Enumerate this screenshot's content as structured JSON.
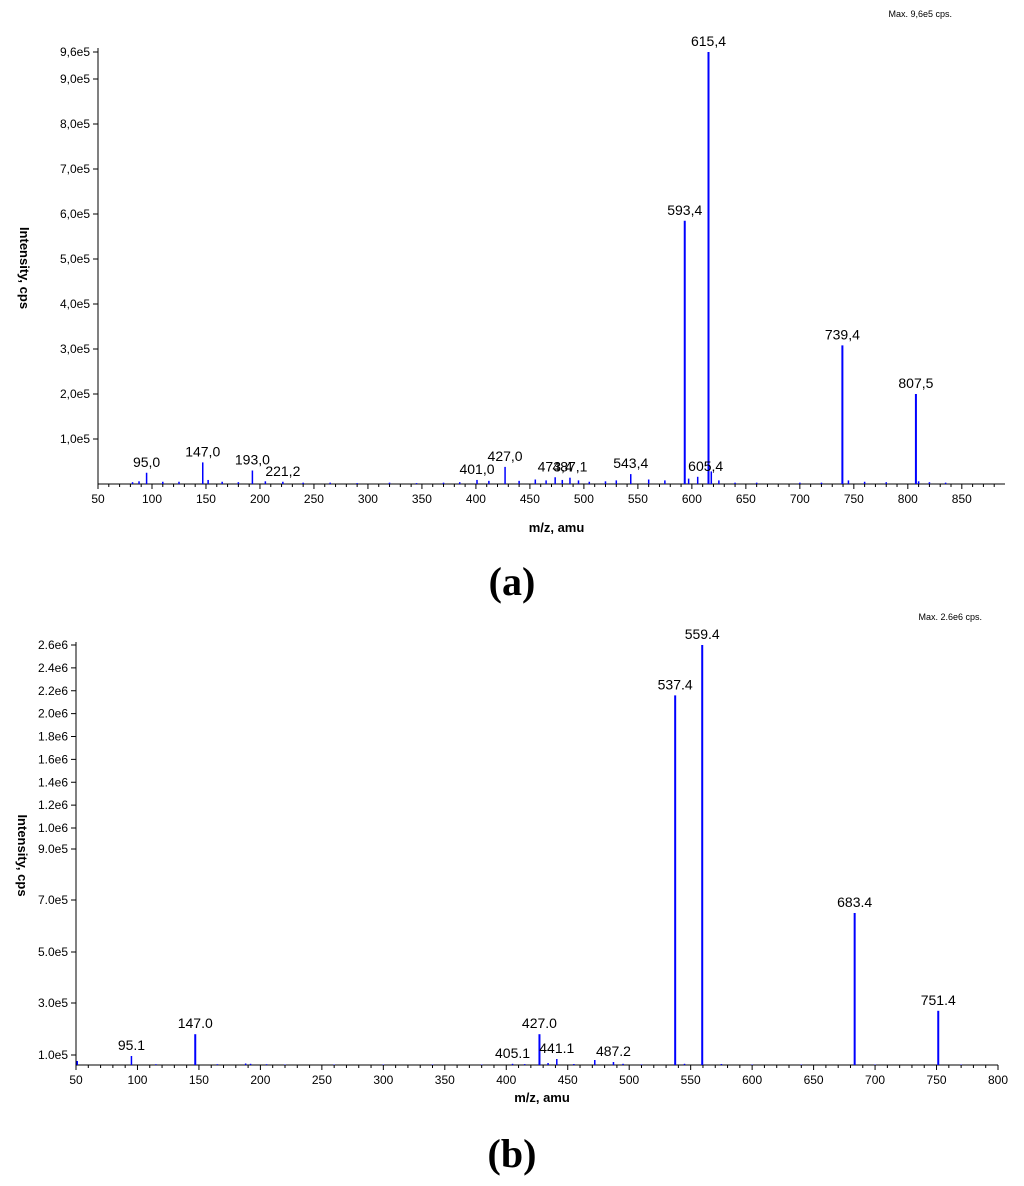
{
  "chart_data": [
    {
      "type": "line",
      "panel_label": "(a)",
      "max_note": "Max. 9,6e5 cps.",
      "xlabel": "m/z, amu",
      "ylabel": "Intensity, cps",
      "xlim": [
        50,
        890
      ],
      "ylim": [
        0,
        960000
      ],
      "xticks": [
        50,
        100,
        150,
        200,
        250,
        300,
        350,
        400,
        450,
        500,
        550,
        600,
        650,
        700,
        750,
        800,
        850
      ],
      "yticks": [
        {
          "value": 100000,
          "label": "1,0e5"
        },
        {
          "value": 200000,
          "label": "2,0e5"
        },
        {
          "value": 300000,
          "label": "3,0e5"
        },
        {
          "value": 400000,
          "label": "4,0e5"
        },
        {
          "value": 500000,
          "label": "5,0e5"
        },
        {
          "value": 600000,
          "label": "6,0e5"
        },
        {
          "value": 700000,
          "label": "7,0e5"
        },
        {
          "value": 800000,
          "label": "8,0e5"
        },
        {
          "value": 900000,
          "label": "9,0e5"
        },
        {
          "value": 960000,
          "label": "9,6e5"
        }
      ],
      "series": [
        {
          "color": "#0000ff",
          "x": [
            82,
            88,
            95.0,
            110,
            125,
            147.0,
            152,
            165,
            180,
            193.0,
            205,
            221.2,
            240,
            265,
            290,
            320,
            345,
            370,
            385,
            401.0,
            412,
            427.0,
            440,
            455,
            465,
            473.4,
            480,
            487.1,
            495,
            505,
            520,
            530,
            543.4,
            560,
            575,
            593.4,
            597,
            605.4,
            615.4,
            618,
            625,
            640,
            660,
            700,
            720,
            739.4,
            745,
            760,
            780,
            807.5,
            810,
            820,
            835
          ],
          "y": [
            4000,
            6000,
            25000,
            5000,
            5000,
            48000,
            9000,
            5000,
            4000,
            30000,
            6000,
            5000,
            3000,
            3000,
            2000,
            3000,
            2000,
            3000,
            4000,
            9000,
            7000,
            38000,
            7000,
            10000,
            8000,
            15000,
            9000,
            14000,
            8000,
            5000,
            6000,
            8000,
            22000,
            10000,
            8000,
            585000,
            12000,
            16000,
            960000,
            28000,
            8000,
            3000,
            3000,
            3000,
            3000,
            308000,
            8000,
            5000,
            4000,
            200000,
            6000,
            4000,
            3000
          ]
        }
      ],
      "annotations": [
        {
          "text": "95,0",
          "x": 95.0,
          "y": 25000
        },
        {
          "text": "147,0",
          "x": 147.0,
          "y": 48000
        },
        {
          "text": "193,0",
          "x": 193.0,
          "y": 30000
        },
        {
          "text": "221,2",
          "x": 221.2,
          "y": 5000
        },
        {
          "text": "401,0",
          "x": 401.0,
          "y": 9000
        },
        {
          "text": "427,0",
          "x": 427.0,
          "y": 38000
        },
        {
          "text": "473,4",
          "x": 473.4,
          "y": 15000
        },
        {
          "text": "487,1",
          "x": 487.1,
          "y": 14000
        },
        {
          "text": "543,4",
          "x": 543.4,
          "y": 22000
        },
        {
          "text": "605,4",
          "x": 605.4,
          "y": 16000
        },
        {
          "text": "593,4",
          "x": 593.4,
          "y": 585000
        },
        {
          "text": "615,4",
          "x": 615.4,
          "y": 960000
        },
        {
          "text": "739,4",
          "x": 739.4,
          "y": 308000
        },
        {
          "text": "807,5",
          "x": 807.5,
          "y": 200000
        }
      ]
    },
    {
      "type": "line",
      "panel_label": "(b)",
      "max_note": "Max. 2.6e6 cps.",
      "xlabel": "m/z, amu",
      "ylabel": "Intensity, cps",
      "xlim": [
        50,
        800
      ],
      "ylim": [
        0,
        2600000
      ],
      "xticks": [
        50,
        100,
        150,
        200,
        250,
        300,
        350,
        400,
        450,
        500,
        550,
        600,
        650,
        700,
        750,
        800
      ],
      "yticks": [
        {
          "value": 100000,
          "label": "1.0e5"
        },
        {
          "value": 300000,
          "label": "3.0e5"
        },
        {
          "value": 500000,
          "label": "5.0e5"
        },
        {
          "value": 700000,
          "label": "7.0e5"
        },
        {
          "value": 900000,
          "label": "9.0e5"
        },
        {
          "value": 1000000,
          "label": "1.0e6"
        },
        {
          "value": 1200000,
          "label": "1.2e6"
        },
        {
          "value": 1400000,
          "label": "1.4e6"
        },
        {
          "value": 1600000,
          "label": "1.6e6"
        },
        {
          "value": 1800000,
          "label": "1.8e6"
        },
        {
          "value": 2000000,
          "label": "2.0e6"
        },
        {
          "value": 2200000,
          "label": "2.2e6"
        },
        {
          "value": 2400000,
          "label": "2.4e6"
        },
        {
          "value": 2600000,
          "label": "2.6e6"
        }
      ],
      "series": [
        {
          "color": "#0000ff",
          "x": [
            51,
            95.1,
            115,
            147.0,
            165,
            188,
            192,
            205,
            220,
            260,
            300,
            340,
            380,
            405.1,
            415,
            427.0,
            434,
            441.1,
            455,
            472,
            487.2,
            495,
            510,
            537.4,
            545,
            559.4,
            575,
            600,
            640,
            683.4,
            700,
            751.4,
            770
          ],
          "y": [
            40000,
            90000,
            8000,
            180000,
            8000,
            15000,
            12000,
            8000,
            5000,
            5000,
            5000,
            5000,
            5000,
            12000,
            9000,
            180000,
            20000,
            60000,
            10000,
            50000,
            30000,
            12000,
            6000,
            2160000,
            12000,
            2600000,
            10000,
            5000,
            5000,
            650000,
            5000,
            270000,
            5000
          ]
        }
      ],
      "annotations": [
        {
          "text": "95.1",
          "x": 95.1,
          "y": 90000
        },
        {
          "text": "147.0",
          "x": 147.0,
          "y": 180000
        },
        {
          "text": "405.1",
          "x": 405.1,
          "y": 12000
        },
        {
          "text": "427.0",
          "x": 427.0,
          "y": 180000
        },
        {
          "text": "441.1",
          "x": 441.1,
          "y": 60000
        },
        {
          "text": "487.2",
          "x": 487.2,
          "y": 30000
        },
        {
          "text": "537.4",
          "x": 537.4,
          "y": 2160000
        },
        {
          "text": "559.4",
          "x": 559.4,
          "y": 2600000
        },
        {
          "text": "683.4",
          "x": 683.4,
          "y": 650000
        },
        {
          "text": "751.4",
          "x": 751.4,
          "y": 270000
        }
      ]
    }
  ]
}
